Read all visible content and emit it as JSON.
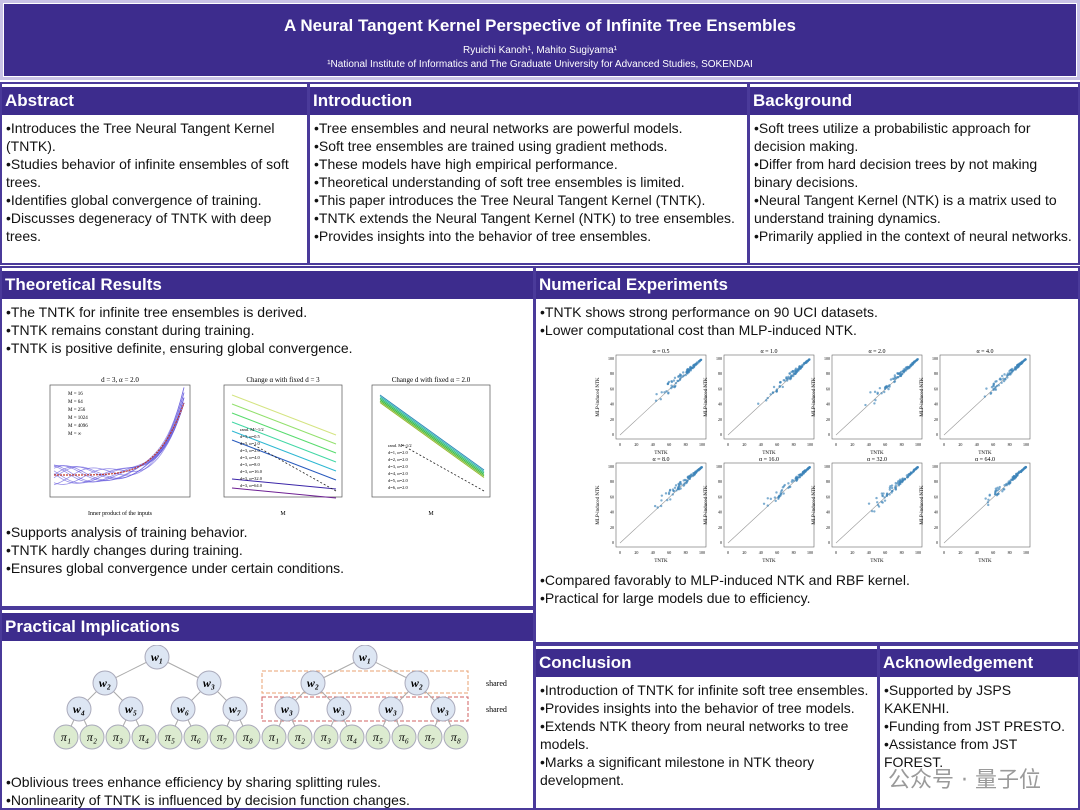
{
  "header": {
    "title": "A Neural Tangent Kernel Perspective of Infinite Tree Ensembles",
    "authors": "Ryuichi Kanoh¹, Mahito Sugiyama¹",
    "affiliation": "¹National Institute of Informatics and The Graduate University for Advanced Studies, SOKENDAI"
  },
  "abstract": {
    "title": "Abstract",
    "items": [
      "•Introduces the Tree Neural Tangent Kernel (TNTK).",
      "•Studies behavior of infinite ensembles of soft trees.",
      "•Identifies global convergence of training.",
      "•Discusses degeneracy of TNTK with deep trees."
    ]
  },
  "introduction": {
    "title": "Introduction",
    "items": [
      "•Tree ensembles and neural networks are powerful models.",
      "•Soft tree ensembles are trained using gradient methods.",
      "•These models have high empirical performance.",
      "•Theoretical understanding of soft tree ensembles is limited.",
      "•This paper introduces the Tree Neural Tangent Kernel (TNTK).",
      "•TNTK extends the Neural Tangent Kernel (NTK) to tree ensembles.",
      "•Provides insights into the behavior of tree ensembles."
    ]
  },
  "background": {
    "title": "Background",
    "items": [
      "•Soft trees utilize a probabilistic approach for decision making.",
      "•Differ from hard decision trees by not making binary decisions.",
      "•Neural Tangent Kernel (NTK) is a matrix used to understand training dynamics.",
      "•Primarily applied in the context of neural networks."
    ]
  },
  "theory": {
    "title": "Theoretical Results",
    "items_top": [
      "•The TNTK for infinite tree ensembles is derived.",
      "•TNTK remains constant during training.",
      "•TNTK is positive definite, ensuring global convergence."
    ],
    "items_bottom": [
      "•Supports analysis of training behavior.",
      "•TNTK hardly changes during training.",
      "•Ensures global convergence under certain conditions."
    ],
    "fig1": {
      "title": "d = 3, α = 2.0",
      "xlabel": "Inner product of the inputs",
      "legend": [
        "M = 16",
        "M = 64",
        "M = 256",
        "M = 1024",
        "M = 4096",
        "M = ∞"
      ]
    },
    "fig2": {
      "title": "Change α with fixed d = 3",
      "xlabel": "M",
      "legend": [
        "rand. M^-1/2",
        "d=3, α=0.5",
        "d=3, α=1.0",
        "d=3, α=2.0",
        "d=3, α=4.0",
        "d=3, α=8.0",
        "d=3, α=16.0",
        "d=3, α=32.0",
        "d=3, α=64.0"
      ]
    },
    "fig3": {
      "title": "Change d with fixed α = 2.0",
      "xlabel": "M",
      "legend": [
        "rand. M^-1/2",
        "d=1, α=2.0",
        "d=2, α=2.0",
        "d=3, α=2.0",
        "d=4, α=2.0",
        "d=5, α=2.0",
        "d=6, α=2.0"
      ]
    }
  },
  "experiments": {
    "title": "Numerical Experiments",
    "items_top": [
      "•TNTK shows strong performance on 90 UCI datasets.",
      "•Lower computational cost than MLP-induced NTK."
    ],
    "items_bottom": [
      "•Compared favorably to MLP-induced NTK and RBF kernel.",
      "•Practical for large models due to efficiency."
    ],
    "panels": [
      "α = 0.5",
      "α = 1.0",
      "α = 2.0",
      "α = 4.0",
      "α = 8.0",
      "α = 16.0",
      "α = 32.0",
      "α = 64.0"
    ],
    "xlabel": "TNTK",
    "ylabel": "MLP-induced NTK",
    "ticks": [
      "0",
      "20",
      "40",
      "60",
      "80",
      "100"
    ],
    "point_color": "#3b82b8"
  },
  "practical": {
    "title": "Practical Implications",
    "items": [
      "•Oblivious trees enhance efficiency by sharing splitting rules.",
      "•Nonlinearity of TNTK is influenced by decision function changes."
    ],
    "tree1": {
      "root": "w₁",
      "level2": [
        "w₂",
        "w₃"
      ],
      "level3": [
        "w₄",
        "w₅",
        "w₆",
        "w₇"
      ],
      "leaves": [
        "π₁",
        "π₂",
        "π₃",
        "π₄",
        "π₅",
        "π₆",
        "π₇",
        "π₈"
      ]
    },
    "tree2": {
      "root": "w₁",
      "level2": [
        "w₂",
        "w₂"
      ],
      "level3": [
        "w₃",
        "w₃",
        "w₃",
        "w₃"
      ],
      "leaves": [
        "π₁",
        "π₂",
        "π₃",
        "π₄",
        "π₅",
        "π₆",
        "π₇",
        "π₈"
      ],
      "shared_label": "shared"
    }
  },
  "conclusion": {
    "title": "Conclusion",
    "items": [
      "•Introduction of TNTK for infinite soft tree ensembles.",
      "•Provides insights into the behavior of tree models.",
      "•Extends NTK theory from neural networks to tree models.",
      "•Marks a significant milestone in NTK theory development."
    ]
  },
  "acknowledgement": {
    "title": "Acknowledgement",
    "items": [
      "•Supported by JSPS KAKENHI.",
      "•Funding from JST PRESTO.",
      "•Assistance from JST FOREST."
    ]
  },
  "watermark": "公众号 · 量子位",
  "colors": {
    "header": "#3d2c8d",
    "node": "#dde6f3",
    "leaf": "#dcebd0"
  }
}
